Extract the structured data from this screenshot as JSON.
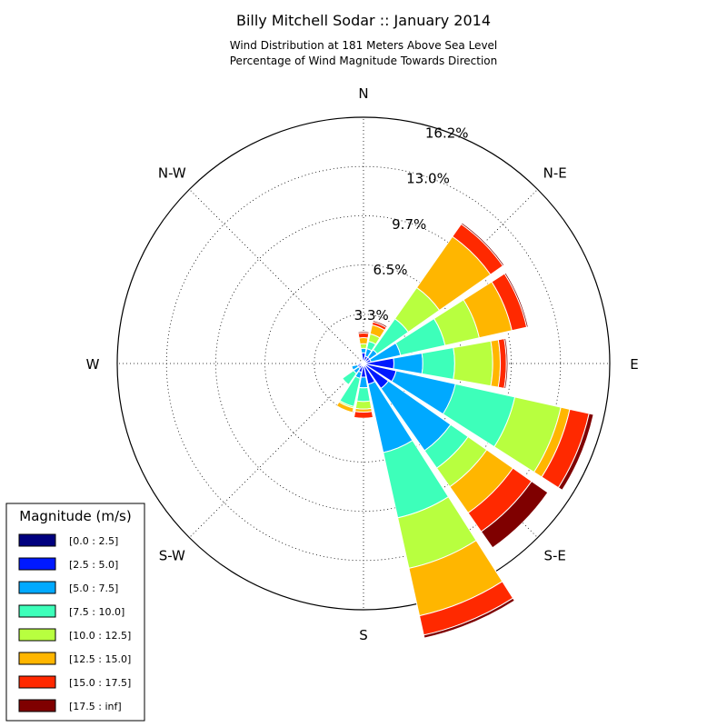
{
  "chart_data": {
    "type": "windrose",
    "title": "Billy Mitchell Sodar :: January 2014",
    "subtitle_lines": [
      "Wind Distribution at 181 Meters Above Sea Level",
      "Percentage of Wind Magnitude Towards Direction"
    ],
    "directions": [
      "N",
      "N-E",
      "E",
      "S-E",
      "S",
      "S-W",
      "W",
      "N-W"
    ],
    "ring_labels": [
      "3.3%",
      "6.5%",
      "9.7%",
      "13.0%",
      "16.2%"
    ],
    "radial_max": 16.2,
    "legend": {
      "title": "Magnitude (m/s)",
      "items": [
        {
          "label": "[0.0 : 2.5]",
          "color": "#00007f"
        },
        {
          "label": "[2.5 : 5.0]",
          "color": "#0019ff"
        },
        {
          "label": "[5.0 : 7.5]",
          "color": "#00a9ff"
        },
        {
          "label": "[7.5 : 10.0]",
          "color": "#3dffba"
        },
        {
          "label": "[10.0 : 12.5]",
          "color": "#b8ff3f"
        },
        {
          "label": "[12.5 : 15.0]",
          "color": "#ffb600"
        },
        {
          "label": "[15.0 : 17.5]",
          "color": "#ff2900"
        },
        {
          "label": "[17.5 : inf]",
          "color": "#7f0000"
        }
      ]
    },
    "sectors": [
      {
        "direction_deg": 0.0,
        "cumulative": [
          0.1,
          0.7,
          1.0,
          1.0,
          1.3,
          1.7,
          2.0,
          2.1
        ]
      },
      {
        "direction_deg": 22.5,
        "cumulative": [
          0.1,
          0.5,
          1.0,
          1.5,
          2.0,
          2.6,
          2.8,
          2.9
        ]
      },
      {
        "direction_deg": 45.0,
        "cumulative": [
          0.1,
          0.5,
          1.1,
          3.6,
          6.1,
          10.2,
          11.2,
          11.3
        ]
      },
      {
        "direction_deg": 67.5,
        "cumulative": [
          0.1,
          0.5,
          2.5,
          5.5,
          7.8,
          10.0,
          11.0,
          11.1
        ]
      },
      {
        "direction_deg": 90.0,
        "cumulative": [
          0.1,
          2.0,
          3.9,
          6.0,
          8.5,
          9.0,
          9.4,
          9.5
        ]
      },
      {
        "direction_deg": 112.5,
        "cumulative": [
          0.1,
          2.2,
          6.2,
          10.2,
          13.3,
          13.9,
          15.2,
          15.5
        ]
      },
      {
        "direction_deg": 135.0,
        "cumulative": [
          0.1,
          2.0,
          7.0,
          8.4,
          9.9,
          12.0,
          13.5,
          14.8
        ]
      },
      {
        "direction_deg": 157.5,
        "cumulative": [
          0.1,
          1.4,
          6.0,
          10.4,
          13.8,
          17.0,
          18.3,
          18.5
        ]
      },
      {
        "direction_deg": 180.0,
        "cumulative": [
          0.1,
          0.9,
          1.6,
          2.5,
          3.0,
          3.2,
          3.6,
          3.6
        ]
      },
      {
        "direction_deg": 202.5,
        "cumulative": [
          0.1,
          0.6,
          1.0,
          2.9,
          3.0,
          3.3,
          3.3,
          3.3
        ]
      },
      {
        "direction_deg": 225.0,
        "cumulative": [
          0.1,
          0.4,
          0.8,
          1.7,
          1.7,
          1.7,
          1.7,
          1.7
        ]
      },
      {
        "direction_deg": 247.5,
        "cumulative": [
          0.1,
          0.4,
          0.8,
          0.8,
          0.8,
          0.8,
          0.8,
          0.8
        ]
      },
      {
        "direction_deg": 270.0,
        "cumulative": [
          0.1,
          0.3,
          0.3,
          0.3,
          0.3,
          0.3,
          0.3,
          0.3
        ]
      },
      {
        "direction_deg": 292.5,
        "cumulative": [
          0.1,
          0.2,
          0.2,
          0.2,
          0.2,
          0.2,
          0.2,
          0.2
        ]
      },
      {
        "direction_deg": 315.0,
        "cumulative": [
          0.1,
          0.2,
          0.2,
          0.2,
          0.2,
          0.2,
          0.2,
          0.2
        ]
      },
      {
        "direction_deg": 337.5,
        "cumulative": [
          0.1,
          0.2,
          0.2,
          0.2,
          0.2,
          0.2,
          0.2,
          0.2
        ]
      }
    ]
  }
}
